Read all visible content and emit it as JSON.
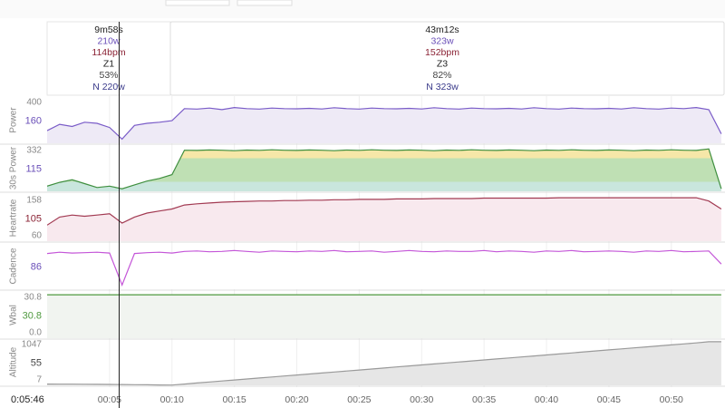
{
  "intervals": [
    {
      "duration": "9m58s",
      "power": "210w",
      "heartrate": "114bpm",
      "zone": "Z1",
      "percent": "53%",
      "np": "N 220w"
    },
    {
      "duration": "43m12s",
      "power": "323w",
      "heartrate": "152bpm",
      "zone": "Z3",
      "percent": "82%",
      "np": "N 323w"
    }
  ],
  "cursor": {
    "label": "0:05:46",
    "time": 5.77
  },
  "timeline": {
    "xlim": [
      0,
      54.3
    ],
    "xticks": [
      {
        "value": 5,
        "label": "00:05"
      },
      {
        "value": 10,
        "label": "00:10"
      },
      {
        "value": 15,
        "label": "00:15"
      },
      {
        "value": 20,
        "label": "00:20"
      },
      {
        "value": 25,
        "label": "00:25"
      },
      {
        "value": 30,
        "label": "00:30"
      },
      {
        "value": 35,
        "label": "00:35"
      },
      {
        "value": 40,
        "label": "00:40"
      },
      {
        "value": 45,
        "label": "00:45"
      },
      {
        "value": 50,
        "label": "00:50"
      }
    ],
    "x": [
      0,
      1,
      2,
      3,
      4,
      5,
      6,
      7,
      8,
      9,
      10,
      11,
      12,
      13,
      14,
      15,
      16,
      17,
      18,
      19,
      20,
      21,
      22,
      23,
      24,
      25,
      26,
      27,
      28,
      29,
      30,
      31,
      32,
      33,
      34,
      35,
      36,
      37,
      38,
      39,
      40,
      41,
      42,
      43,
      44,
      45,
      46,
      47,
      48,
      49,
      50,
      51,
      52,
      53,
      54
    ]
  },
  "chart_data": [
    {
      "type": "line",
      "ylabel": "Power",
      "color": "#7a5cc8",
      "fill": "#eeeaf6",
      "cursor_value": 160,
      "ylim": [
        0,
        440
      ],
      "yticks": [
        400
      ],
      "values": [
        120,
        180,
        160,
        200,
        190,
        150,
        40,
        170,
        190,
        200,
        215,
        330,
        325,
        335,
        320,
        340,
        330,
        325,
        335,
        330,
        328,
        332,
        326,
        338,
        330,
        325,
        335,
        330,
        328,
        332,
        326,
        338,
        330,
        325,
        335,
        330,
        328,
        332,
        326,
        338,
        330,
        325,
        335,
        330,
        328,
        332,
        326,
        338,
        330,
        325,
        335,
        330,
        340,
        320,
        90
      ]
    },
    {
      "type": "zone-area",
      "ylabel": "30s Power",
      "color": "#3f8f3f",
      "cursor_value": 115,
      "zone_colors": [
        "#c9e6dd",
        "#bfe0b4",
        "#f6e7a8"
      ],
      "ylim": [
        0,
        360
      ],
      "yticks": [
        332
      ],
      "values": [
        40,
        70,
        90,
        60,
        30,
        40,
        20,
        50,
        80,
        100,
        130,
        320,
        318,
        322,
        320,
        316,
        321,
        319,
        323,
        320,
        318,
        322,
        320,
        316,
        321,
        319,
        323,
        320,
        318,
        322,
        320,
        316,
        321,
        319,
        323,
        320,
        318,
        322,
        320,
        316,
        321,
        319,
        323,
        320,
        318,
        322,
        320,
        316,
        321,
        319,
        323,
        320,
        318,
        330,
        20
      ]
    },
    {
      "type": "line",
      "ylabel": "Heartrate",
      "color": "#a23a52",
      "fill": "#f8e9ee",
      "cursor_value": 105,
      "ylim": [
        50,
        165
      ],
      "yticks": [
        158,
        60
      ],
      "values": [
        90,
        110,
        115,
        112,
        115,
        118,
        95,
        110,
        120,
        125,
        130,
        140,
        143,
        145,
        147,
        148,
        149,
        150,
        150,
        151,
        151,
        152,
        152,
        153,
        153,
        154,
        154,
        154,
        155,
        155,
        155,
        156,
        156,
        156,
        156,
        157,
        157,
        157,
        157,
        157,
        157,
        158,
        158,
        158,
        158,
        158,
        158,
        158,
        158,
        158,
        158,
        158,
        158,
        150,
        130
      ]
    },
    {
      "type": "line",
      "ylabel": "Cadence",
      "color": "#c456d8",
      "fill": "#ffffff",
      "cursor_value": 86,
      "ylim": [
        0,
        110
      ],
      "yticks": [],
      "values": [
        85,
        88,
        86,
        87,
        88,
        86,
        10,
        85,
        87,
        88,
        86,
        90,
        91,
        89,
        90,
        92,
        90,
        88,
        91,
        90,
        89,
        91,
        90,
        92,
        89,
        90,
        91,
        88,
        90,
        92,
        90,
        89,
        91,
        90,
        90,
        92,
        89,
        91,
        90,
        88,
        91,
        90,
        92,
        89,
        90,
        91,
        90,
        88,
        91,
        90,
        92,
        89,
        90,
        91,
        60
      ]
    },
    {
      "type": "line",
      "ylabel": "Wbal",
      "color": "#4f9a3f",
      "fill": "#f1f4f0",
      "cursor_value": 30.8,
      "ylim": [
        -3,
        33
      ],
      "yticks": [
        30.8,
        {
          "value": 0,
          "label": "0.0"
        }
      ],
      "values": [
        30.8,
        30.8,
        30.8,
        30.8,
        30.8,
        30.8,
        30.8,
        30.8,
        30.8,
        30.8,
        30.8,
        30.8,
        30.8,
        30.8,
        30.8,
        30.8,
        30.8,
        30.8,
        30.8,
        30.8,
        30.8,
        30.8,
        30.8,
        30.8,
        30.8,
        30.8,
        30.8,
        30.8,
        30.8,
        30.8,
        30.8,
        30.8,
        30.8,
        30.8,
        30.8,
        30.8,
        30.8,
        30.8,
        30.8,
        30.8,
        30.8,
        30.8,
        30.8,
        30.8,
        30.8,
        30.8,
        30.8,
        30.8,
        30.8,
        30.8,
        30.8,
        30.8,
        30.8,
        30.8,
        30.8
      ]
    },
    {
      "type": "line",
      "ylabel": "Altitude",
      "color": "#9a9a9a",
      "fill": "#e6e6e6",
      "cursor_value": 55,
      "ylim": [
        0,
        1060
      ],
      "yticks": [
        1047,
        7
      ],
      "values": [
        30,
        28,
        26,
        24,
        22,
        20,
        18,
        15,
        12,
        9,
        7,
        30,
        53,
        76,
        99,
        122,
        145,
        168,
        191,
        214,
        237,
        260,
        283,
        306,
        329,
        352,
        375,
        398,
        421,
        444,
        467,
        490,
        513,
        536,
        559,
        582,
        605,
        628,
        651,
        674,
        697,
        720,
        743,
        766,
        789,
        812,
        835,
        858,
        881,
        904,
        927,
        950,
        973,
        1000,
        1000
      ]
    }
  ]
}
